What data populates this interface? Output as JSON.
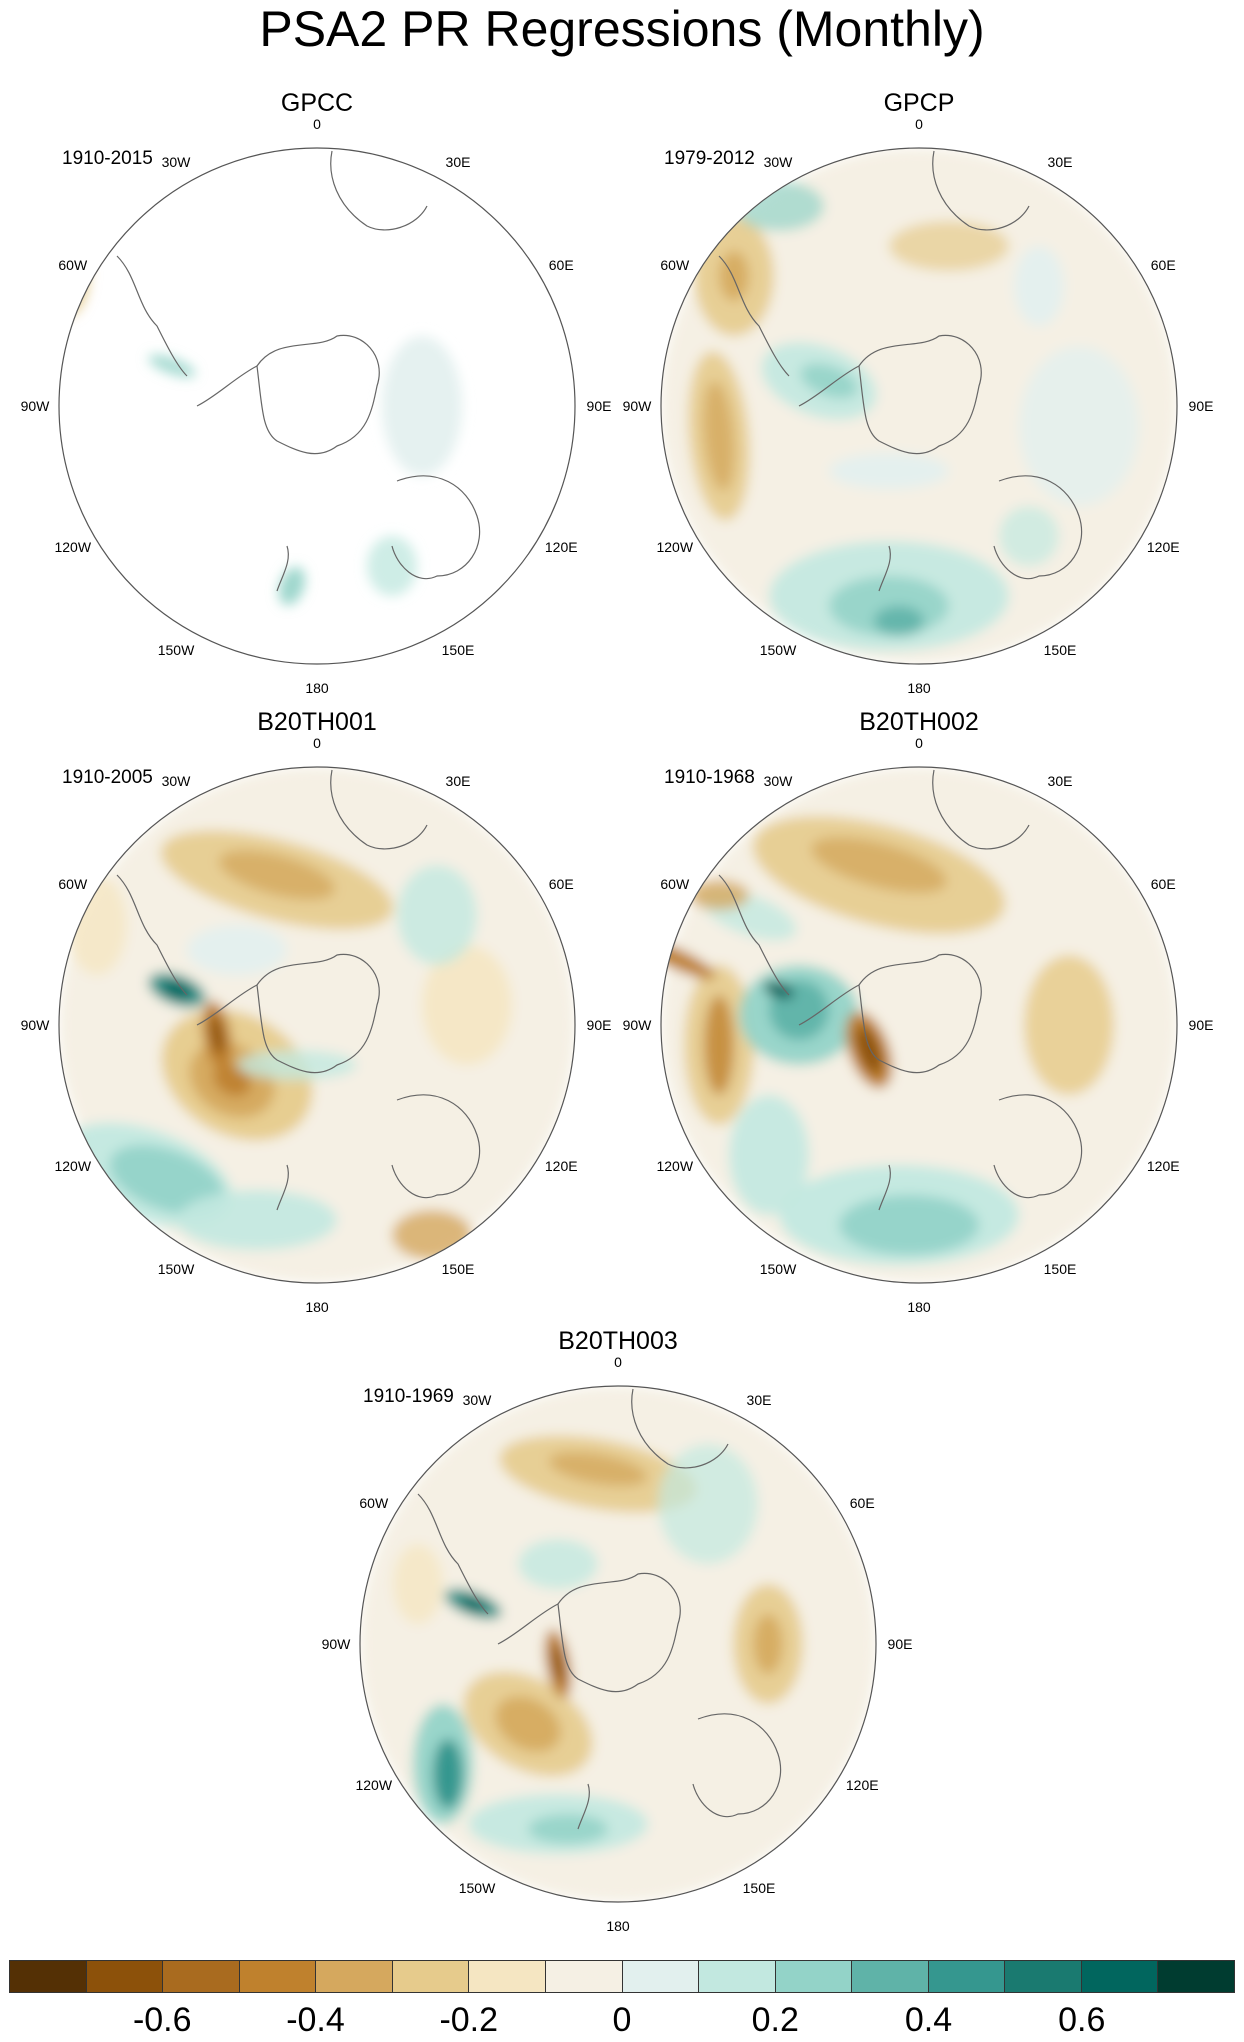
{
  "title": "PSA2 PR Regressions (Monthly)",
  "panels": [
    {
      "id": "gpcc",
      "title": "GPCC",
      "period": "1910-2015"
    },
    {
      "id": "gpcp",
      "title": "GPCP",
      "period": "1979-2012"
    },
    {
      "id": "b20th001",
      "title": "B20TH001",
      "period": "1910-2005"
    },
    {
      "id": "b20th002",
      "title": "B20TH002",
      "period": "1910-1968"
    },
    {
      "id": "b20th003",
      "title": "B20TH003",
      "period": "1910-1969"
    }
  ],
  "longitude_labels": [
    "0",
    "30E",
    "60E",
    "90E",
    "120E",
    "150E",
    "180",
    "150W",
    "120W",
    "90W",
    "60W",
    "30W"
  ],
  "colorbar": {
    "colors": [
      "#543005",
      "#8c510a",
      "#a96b1f",
      "#bf812d",
      "#d5a85e",
      "#e6cb8c",
      "#f5e6c2",
      "#f5f0e4",
      "#e2f0ee",
      "#c2e8e0",
      "#93d3c8",
      "#5fb3a8",
      "#35978f",
      "#1a7a70",
      "#01665e",
      "#003c30"
    ],
    "tick_labels": [
      "-0.6",
      "-0.4",
      "-0.2",
      "0",
      "0.2",
      "0.4",
      "0.6"
    ]
  }
}
